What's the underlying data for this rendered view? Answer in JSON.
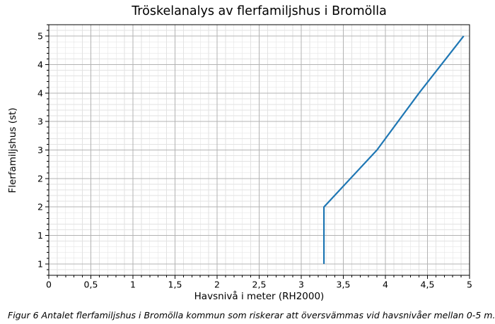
{
  "figure": {
    "caption": "Figur 6 Antalet flerfamiljshus i Bromölla kommun som riskerar att översvämmas vid havsnivåer mellan 0-5 m."
  },
  "chart_data": {
    "type": "line",
    "title": "Tröskelanalys av flerfamiljshus i Bromölla",
    "xlabel": "Havsnivå i meter (RH2000)",
    "ylabel": "Flerfamiljshus (st)",
    "xlim": [
      0,
      5
    ],
    "ylim": [
      0.8,
      5.2
    ],
    "grid": {
      "major": true,
      "minor": true
    },
    "minor_step": 0.1,
    "x_ticks": {
      "values": [
        0,
        0.5,
        1,
        1.5,
        2,
        2.5,
        3,
        3.5,
        4,
        4.5,
        5
      ],
      "labels": [
        "0",
        "0,5",
        "1",
        "1,5",
        "2",
        "2,5",
        "3",
        "3,5",
        "4",
        "4,5",
        "5"
      ]
    },
    "y_ticks": {
      "values": [
        1,
        1.5,
        2,
        2.5,
        3,
        3.5,
        4,
        4.5,
        5
      ],
      "labels": [
        "1",
        "1",
        "2",
        "2",
        "3",
        "3",
        "4",
        "4",
        "5"
      ]
    },
    "series": [
      {
        "name": "Flerfamiljshus",
        "points": [
          [
            3.27,
            1
          ],
          [
            3.27,
            2
          ],
          [
            3.9,
            3
          ],
          [
            4.4,
            4
          ],
          [
            4.93,
            5
          ]
        ]
      }
    ],
    "colors": {
      "line": "#1f77b4",
      "grid_major": "#b3b3b3",
      "grid_minor": "#e2e2e2",
      "spine": "#000000",
      "text": "#000000",
      "background": "#ffffff"
    }
  }
}
